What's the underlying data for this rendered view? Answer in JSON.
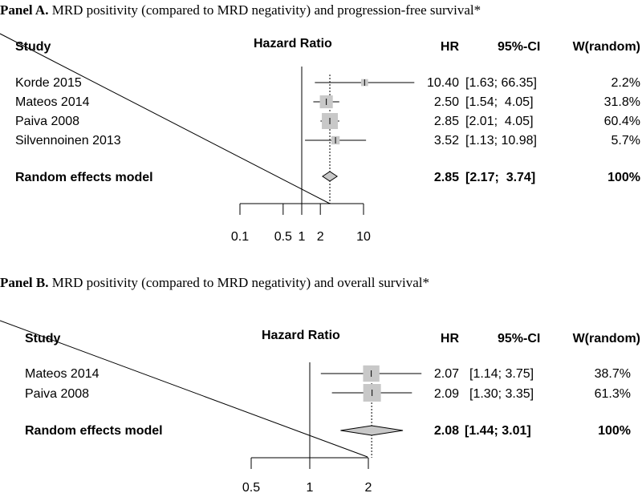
{
  "chart_data": [
    {
      "type": "forest",
      "panel_label": "Panel A.",
      "title": "MRD positivity (compared to MRD negativity) and progression-free survival*",
      "headers": {
        "study": "Study",
        "plot": "Hazard Ratio",
        "hr": "HR",
        "ci": "95%-CI",
        "weight": "W(random)"
      },
      "x_scale": "log",
      "xlim": [
        0.1,
        10
      ],
      "null_line": 1,
      "ticks": [
        {
          "value": 0.1,
          "label": "0.1"
        },
        {
          "value": 0.5,
          "label": "0.5"
        },
        {
          "value": 1,
          "label": "1"
        },
        {
          "value": 2,
          "label": "2"
        },
        {
          "value": 10,
          "label": "10"
        }
      ],
      "studies": [
        {
          "name": "Korde 2015",
          "hr": 10.4,
          "lower": 1.63,
          "upper": 66.35,
          "weight": 2.2,
          "hr_text": "10.40",
          "ci_text": "[1.63; 66.35]",
          "weight_text": "2.2%"
        },
        {
          "name": "Mateos 2014",
          "hr": 2.5,
          "lower": 1.54,
          "upper": 4.05,
          "weight": 31.8,
          "hr_text": "2.50",
          "ci_text": "[1.54;  4.05]",
          "weight_text": "31.8%"
        },
        {
          "name": "Paiva 2008",
          "hr": 2.85,
          "lower": 2.01,
          "upper": 4.05,
          "weight": 60.4,
          "hr_text": "2.85",
          "ci_text": "[2.01;  4.05]",
          "weight_text": "60.4%"
        },
        {
          "name": "Silvennoinen 2013",
          "hr": 3.52,
          "lower": 1.13,
          "upper": 10.98,
          "weight": 5.7,
          "hr_text": "3.52",
          "ci_text": "[1.13; 10.98]",
          "weight_text": "5.7%"
        }
      ],
      "pooled": {
        "name": "Random effects model",
        "hr": 2.85,
        "lower": 2.17,
        "upper": 3.74,
        "weight": 100,
        "hr_text": "2.85",
        "ci_text": "[2.17;  3.74]",
        "weight_text": "100%"
      }
    },
    {
      "type": "forest",
      "panel_label": "Panel B.",
      "title": "MRD positivity (compared to MRD negativity) and overall survival*",
      "headers": {
        "study": "Study",
        "plot": "Hazard Ratio",
        "hr": "HR",
        "ci": "95%-CI",
        "weight": "W(random)"
      },
      "x_scale": "log",
      "xlim": [
        0.5,
        2
      ],
      "null_line": 1,
      "ticks": [
        {
          "value": 0.5,
          "label": "0.5"
        },
        {
          "value": 1,
          "label": "1"
        },
        {
          "value": 2,
          "label": "2"
        }
      ],
      "studies": [
        {
          "name": "Mateos 2014",
          "hr": 2.07,
          "lower": 1.14,
          "upper": 3.75,
          "weight": 38.7,
          "hr_text": "2.07",
          "ci_text": "[1.14; 3.75]",
          "weight_text": "38.7%"
        },
        {
          "name": "Paiva 2008",
          "hr": 2.09,
          "lower": 1.3,
          "upper": 3.35,
          "weight": 61.3,
          "hr_text": "2.09",
          "ci_text": "[1.30; 3.35]",
          "weight_text": "61.3%"
        }
      ],
      "pooled": {
        "name": "Random effects model",
        "hr": 2.08,
        "lower": 1.44,
        "upper": 3.01,
        "weight": 100,
        "hr_text": "2.08",
        "ci_text": "[1.44; 3.01]",
        "weight_text": "100%"
      }
    }
  ]
}
